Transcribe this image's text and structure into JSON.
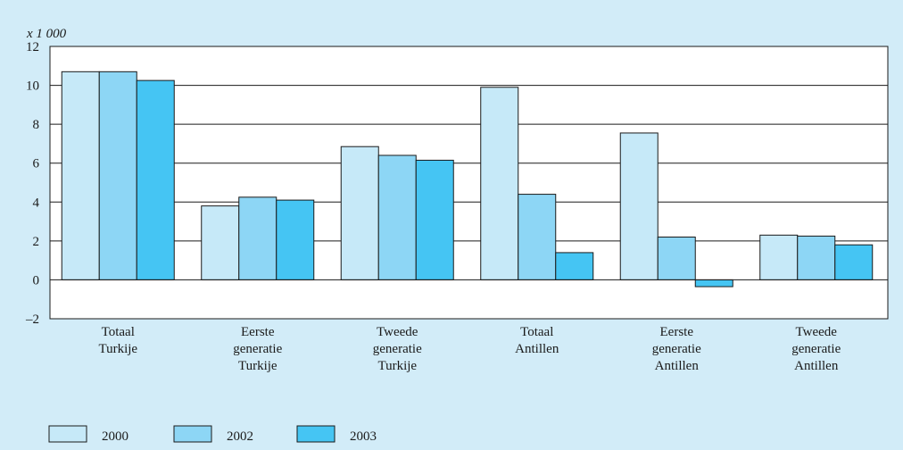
{
  "chart_data": {
    "type": "bar",
    "title": "",
    "unit_label": "x 1 000",
    "categories": [
      [
        "Totaal",
        "Turkije"
      ],
      [
        "Eerste",
        "generatie",
        "Turkije"
      ],
      [
        "Tweede",
        "generatie",
        "Turkije"
      ],
      [
        "Totaal",
        "Antillen"
      ],
      [
        "Eerste",
        "generatie",
        "Antillen"
      ],
      [
        "Tweede",
        "generatie",
        "Antillen"
      ]
    ],
    "series": [
      {
        "name": "2000",
        "color": "#c6e9f8",
        "values": [
          10.7,
          3.8,
          6.85,
          9.9,
          7.55,
          2.3
        ]
      },
      {
        "name": "2002",
        "color": "#8dd6f5",
        "values": [
          10.7,
          4.25,
          6.4,
          4.4,
          2.2,
          2.25
        ]
      },
      {
        "name": "2003",
        "color": "#45c5f3",
        "values": [
          10.25,
          4.1,
          6.15,
          1.4,
          -0.35,
          1.8
        ]
      }
    ],
    "ylim": [
      -2,
      12
    ],
    "yticks": [
      -2,
      0,
      2,
      4,
      6,
      8,
      10,
      12
    ],
    "ytick_labels": [
      "–2",
      "0",
      "2",
      "4",
      "6",
      "8",
      "10",
      "12"
    ],
    "grid": true,
    "legend_position": "bottom-left",
    "background_color": "#d2ecf8"
  }
}
